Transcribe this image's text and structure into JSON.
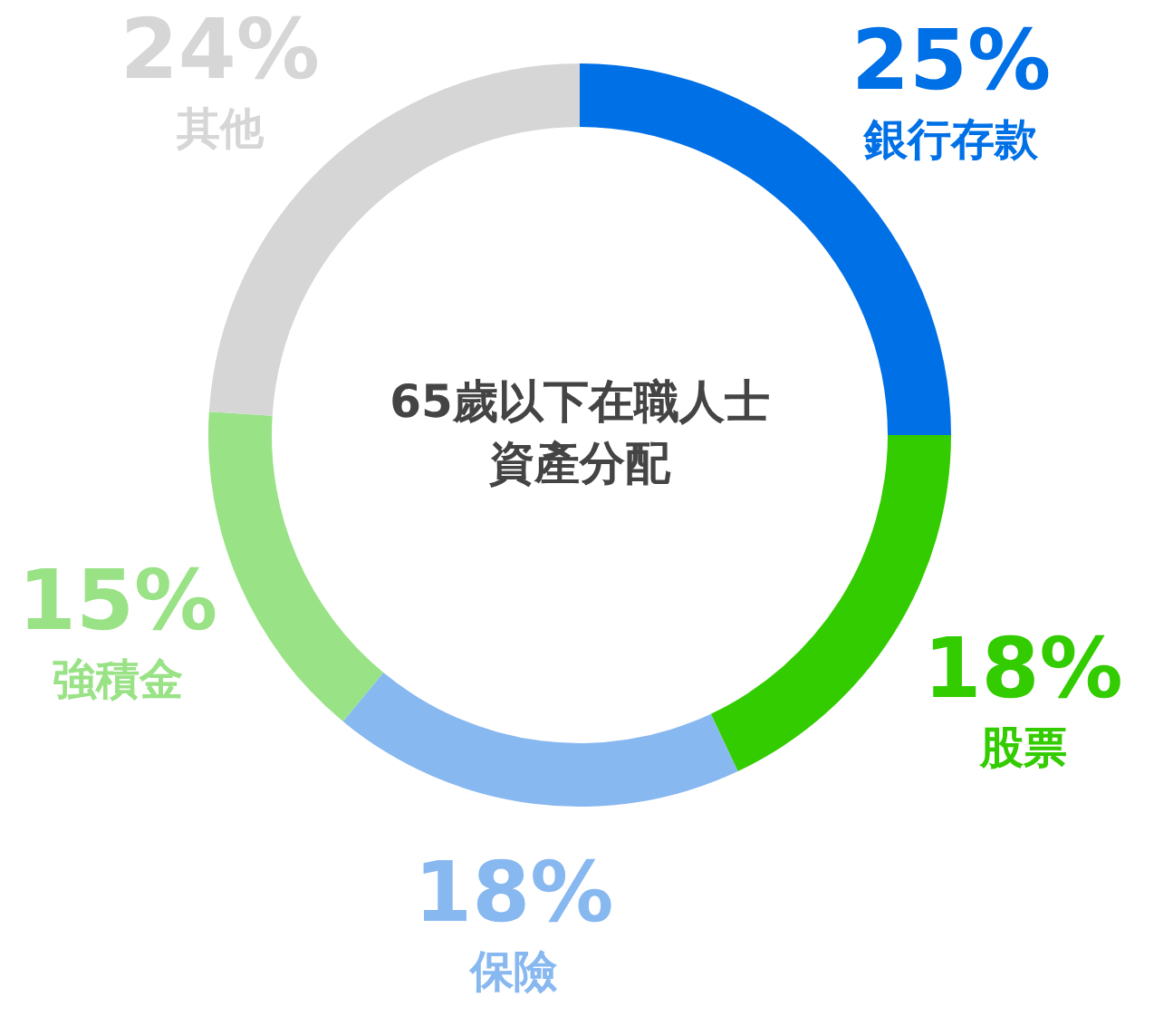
{
  "chart_data": {
    "type": "donut",
    "title": "65歲以下在職人士資產分配",
    "categories": [
      "銀行存款",
      "股票",
      "保險",
      "強積金",
      "其他"
    ],
    "values": [
      25,
      18,
      18,
      15,
      24
    ],
    "value_labels": [
      "25%",
      "18%",
      "18%",
      "15%",
      "24%"
    ],
    "colors": [
      "#0070e6",
      "#33cc00",
      "#88b8f0",
      "#99e286",
      "#d6d6d6"
    ]
  }
}
